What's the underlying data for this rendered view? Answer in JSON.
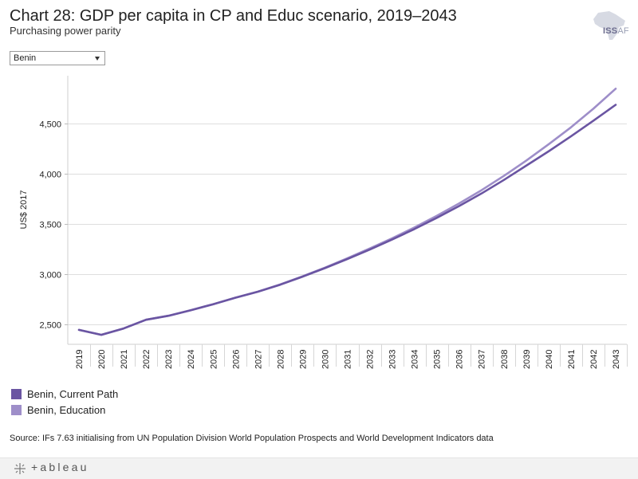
{
  "header": {
    "title": "Chart 28: GDP per capita in CP and Educ scenario, 2019–2043",
    "subtitle": "Purchasing power parity"
  },
  "logo": {
    "main": "ISS",
    "suffix": "AF"
  },
  "filter": {
    "selected": "Benin"
  },
  "chart_data": {
    "type": "line",
    "title": "Chart 28: GDP per capita in CP and Educ scenario, 2019–2043",
    "subtitle": "Purchasing power parity",
    "xlabel": "",
    "ylabel": "US$ 2017",
    "x": [
      "2019",
      "2020",
      "2021",
      "2022",
      "2023",
      "2024",
      "2025",
      "2026",
      "2027",
      "2028",
      "2029",
      "2030",
      "2031",
      "2032",
      "2033",
      "2034",
      "2035",
      "2036",
      "2037",
      "2038",
      "2039",
      "2040",
      "2041",
      "2042",
      "2043"
    ],
    "ylim": [
      2300,
      4980
    ],
    "yticks": [
      2500,
      3000,
      3500,
      4000,
      4500
    ],
    "ytick_labels": [
      "2,500",
      "3,000",
      "3,500",
      "4,000",
      "4,500"
    ],
    "series": [
      {
        "name": "Benin, Current Path",
        "color": "#6a55a2",
        "values": [
          2444,
          2395,
          2458,
          2545,
          2585,
          2640,
          2700,
          2765,
          2825,
          2895,
          2975,
          3060,
          3150,
          3245,
          3345,
          3450,
          3562,
          3680,
          3805,
          3940,
          4082,
          4225,
          4375,
          4530,
          4690
        ]
      },
      {
        "name": "Benin, Education",
        "color": "#9e8ec9",
        "values": [
          2444,
          2395,
          2458,
          2545,
          2585,
          2640,
          2700,
          2765,
          2825,
          2897,
          2978,
          3065,
          3158,
          3256,
          3358,
          3466,
          3582,
          3705,
          3837,
          3980,
          4132,
          4295,
          4465,
          4650,
          4850
        ]
      }
    ],
    "legend_position": "bottom-left"
  },
  "source": "Source: IFs 7.63 initialising from UN Population Division World Population Prospects and World Development Indicators data",
  "footer": {
    "brand": "+ableau",
    "icon": "tableau-plus-icon"
  }
}
